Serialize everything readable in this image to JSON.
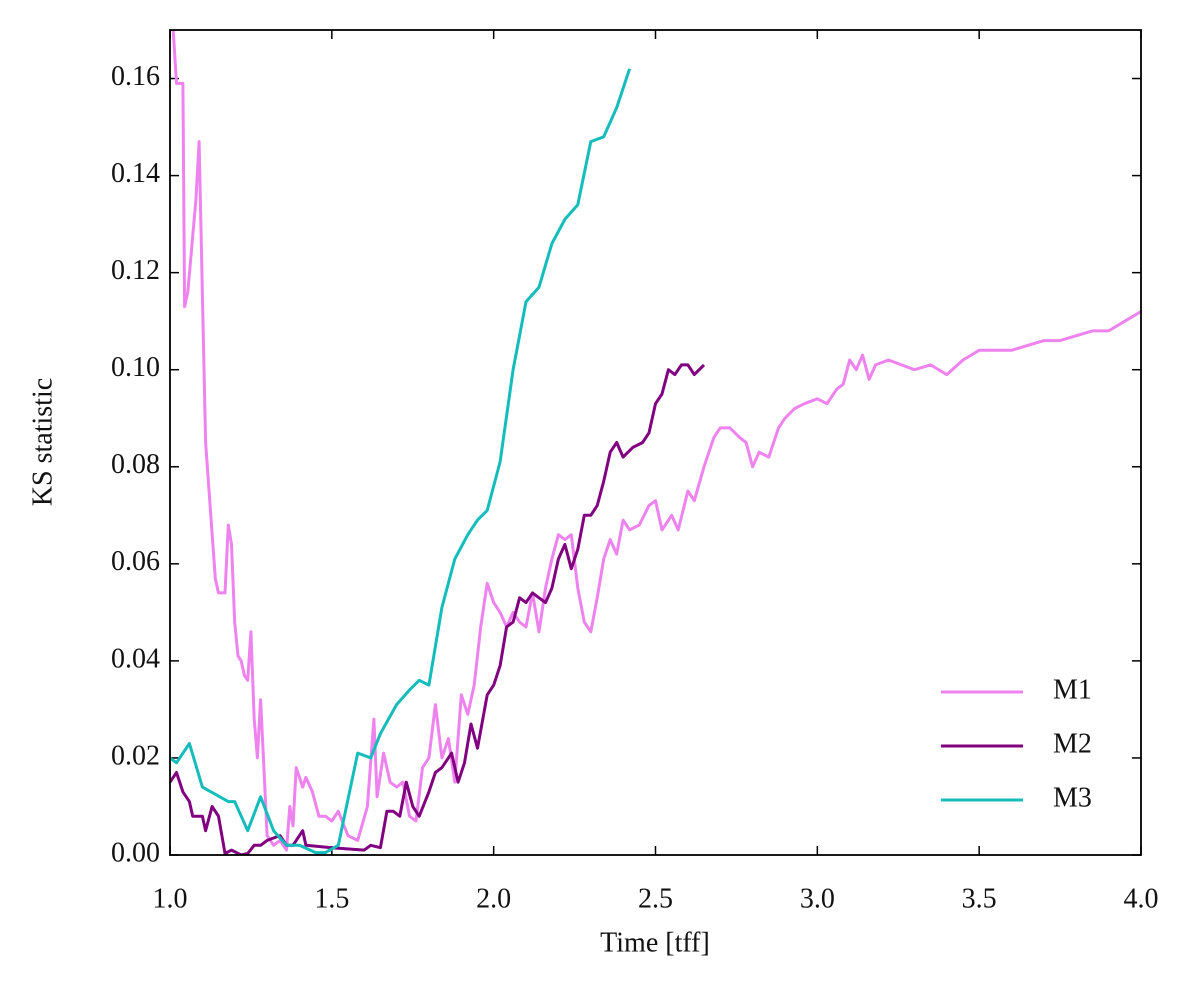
{
  "chart_data": {
    "type": "line",
    "xlabel": "Time [tff]",
    "ylabel": "KS statistic",
    "xlim": [
      1,
      4
    ],
    "ylim": [
      0,
      0.17
    ],
    "xticks": [
      {
        "value": 1,
        "label": "1.0"
      },
      1.5,
      {
        "value": 2,
        "label": "2.0"
      },
      2.5,
      {
        "value": 3,
        "label": "3.0"
      },
      3.5,
      {
        "value": 4,
        "label": "4.0"
      }
    ],
    "yticks": [
      {
        "value": 0,
        "label": "0.00"
      },
      0.02,
      0.04,
      0.06,
      0.08,
      {
        "value": 0.1,
        "label": "0.10"
      },
      0.12,
      0.14,
      0.16
    ],
    "legend": "lower right",
    "series": [
      {
        "name": "M1",
        "color": "#ee82ee",
        "x": [
          1.01,
          1.02,
          1.04,
          1.045,
          1.055,
          1.08,
          1.09,
          1.11,
          1.14,
          1.15,
          1.17,
          1.18,
          1.19,
          1.2,
          1.21,
          1.22,
          1.23,
          1.24,
          1.25,
          1.26,
          1.27,
          1.28,
          1.29,
          1.3,
          1.32,
          1.34,
          1.36,
          1.37,
          1.38,
          1.39,
          1.41,
          1.42,
          1.44,
          1.46,
          1.48,
          1.5,
          1.52,
          1.55,
          1.58,
          1.61,
          1.63,
          1.64,
          1.66,
          1.68,
          1.7,
          1.72,
          1.74,
          1.76,
          1.78,
          1.8,
          1.82,
          1.84,
          1.86,
          1.88,
          1.9,
          1.92,
          1.94,
          1.96,
          1.98,
          2.0,
          2.02,
          2.04,
          2.06,
          2.08,
          2.1,
          2.12,
          2.14,
          2.16,
          2.18,
          2.2,
          2.22,
          2.24,
          2.26,
          2.28,
          2.3,
          2.32,
          2.34,
          2.36,
          2.38,
          2.4,
          2.42,
          2.45,
          2.48,
          2.5,
          2.52,
          2.55,
          2.57,
          2.6,
          2.62,
          2.65,
          2.68,
          2.7,
          2.73,
          2.76,
          2.78,
          2.8,
          2.82,
          2.85,
          2.88,
          2.9,
          2.93,
          2.96,
          3.0,
          3.03,
          3.06,
          3.08,
          3.1,
          3.12,
          3.14,
          3.16,
          3.18,
          3.22,
          3.26,
          3.3,
          3.35,
          3.4,
          3.45,
          3.5,
          3.55,
          3.6,
          3.65,
          3.7,
          3.75,
          3.8,
          3.85,
          3.9,
          3.95,
          4.0
        ],
        "values": [
          0.17,
          0.159,
          0.159,
          0.113,
          0.116,
          0.135,
          0.147,
          0.085,
          0.057,
          0.054,
          0.054,
          0.068,
          0.064,
          0.048,
          0.041,
          0.04,
          0.037,
          0.036,
          0.046,
          0.028,
          0.02,
          0.032,
          0.018,
          0.004,
          0.002,
          0.003,
          0.001,
          0.01,
          0.006,
          0.018,
          0.014,
          0.016,
          0.013,
          0.008,
          0.008,
          0.007,
          0.009,
          0.004,
          0.003,
          0.01,
          0.028,
          0.012,
          0.021,
          0.015,
          0.014,
          0.015,
          0.008,
          0.007,
          0.018,
          0.02,
          0.031,
          0.02,
          0.024,
          0.015,
          0.033,
          0.029,
          0.035,
          0.047,
          0.056,
          0.052,
          0.05,
          0.047,
          0.05,
          0.048,
          0.047,
          0.054,
          0.046,
          0.055,
          0.061,
          0.066,
          0.065,
          0.066,
          0.055,
          0.048,
          0.046,
          0.053,
          0.061,
          0.065,
          0.062,
          0.069,
          0.067,
          0.068,
          0.072,
          0.073,
          0.067,
          0.07,
          0.067,
          0.075,
          0.073,
          0.08,
          0.086,
          0.088,
          0.088,
          0.086,
          0.085,
          0.08,
          0.083,
          0.082,
          0.088,
          0.09,
          0.092,
          0.093,
          0.094,
          0.093,
          0.096,
          0.097,
          0.102,
          0.1,
          0.103,
          0.098,
          0.101,
          0.102,
          0.101,
          0.1,
          0.101,
          0.099,
          0.102,
          0.104,
          0.104,
          0.104,
          0.105,
          0.106,
          0.106,
          0.107,
          0.108,
          0.108,
          0.11,
          0.112
        ]
      },
      {
        "name": "M2",
        "color": "#800080",
        "x": [
          1.0,
          1.02,
          1.04,
          1.06,
          1.07,
          1.1,
          1.11,
          1.13,
          1.15,
          1.17,
          1.19,
          1.22,
          1.24,
          1.26,
          1.28,
          1.3,
          1.34,
          1.36,
          1.38,
          1.41,
          1.42,
          1.5,
          1.6,
          1.62,
          1.65,
          1.67,
          1.69,
          1.71,
          1.73,
          1.75,
          1.77,
          1.8,
          1.82,
          1.84,
          1.86,
          1.87,
          1.89,
          1.91,
          1.93,
          1.95,
          1.98,
          2.0,
          2.02,
          2.04,
          2.06,
          2.08,
          2.1,
          2.12,
          2.14,
          2.16,
          2.18,
          2.2,
          2.22,
          2.24,
          2.26,
          2.28,
          2.3,
          2.32,
          2.34,
          2.36,
          2.38,
          2.4,
          2.43,
          2.46,
          2.48,
          2.5,
          2.52,
          2.54,
          2.56,
          2.58,
          2.6,
          2.62,
          2.65
        ],
        "values": [
          0.015,
          0.017,
          0.013,
          0.011,
          0.008,
          0.008,
          0.005,
          0.01,
          0.008,
          0.0003,
          0.001,
          0,
          0.0003,
          0.002,
          0.002,
          0.003,
          0.004,
          0.002,
          0.002,
          0.005,
          0.002,
          0.0015,
          0.001,
          0.002,
          0.0015,
          0.009,
          0.009,
          0.008,
          0.015,
          0.01,
          0.008,
          0.013,
          0.017,
          0.018,
          0.02,
          0.021,
          0.015,
          0.019,
          0.027,
          0.022,
          0.033,
          0.035,
          0.039,
          0.047,
          0.048,
          0.053,
          0.052,
          0.054,
          0.053,
          0.052,
          0.055,
          0.061,
          0.064,
          0.059,
          0.063,
          0.07,
          0.07,
          0.072,
          0.077,
          0.083,
          0.085,
          0.082,
          0.084,
          0.085,
          0.087,
          0.093,
          0.095,
          0.1,
          0.099,
          0.101,
          0.101,
          0.099,
          0.101
        ]
      },
      {
        "name": "M3",
        "color": "#14bcbc",
        "x": [
          1.0,
          1.02,
          1.06,
          1.1,
          1.18,
          1.2,
          1.24,
          1.28,
          1.32,
          1.36,
          1.4,
          1.45,
          1.48,
          1.52,
          1.58,
          1.62,
          1.65,
          1.7,
          1.74,
          1.77,
          1.8,
          1.84,
          1.88,
          1.92,
          1.95,
          1.98,
          2.02,
          2.06,
          2.1,
          2.14,
          2.18,
          2.22,
          2.26,
          2.3,
          2.34,
          2.38,
          2.42
        ],
        "values": [
          0.02,
          0.019,
          0.023,
          0.014,
          0.011,
          0.011,
          0.005,
          0.012,
          0.005,
          0.002,
          0.002,
          0.0005,
          0.0005,
          0.002,
          0.021,
          0.02,
          0.025,
          0.031,
          0.034,
          0.036,
          0.035,
          0.051,
          0.061,
          0.066,
          0.069,
          0.071,
          0.081,
          0.1,
          0.114,
          0.117,
          0.126,
          0.131,
          0.134,
          0.147,
          0.148,
          0.154,
          0.162
        ]
      }
    ]
  }
}
